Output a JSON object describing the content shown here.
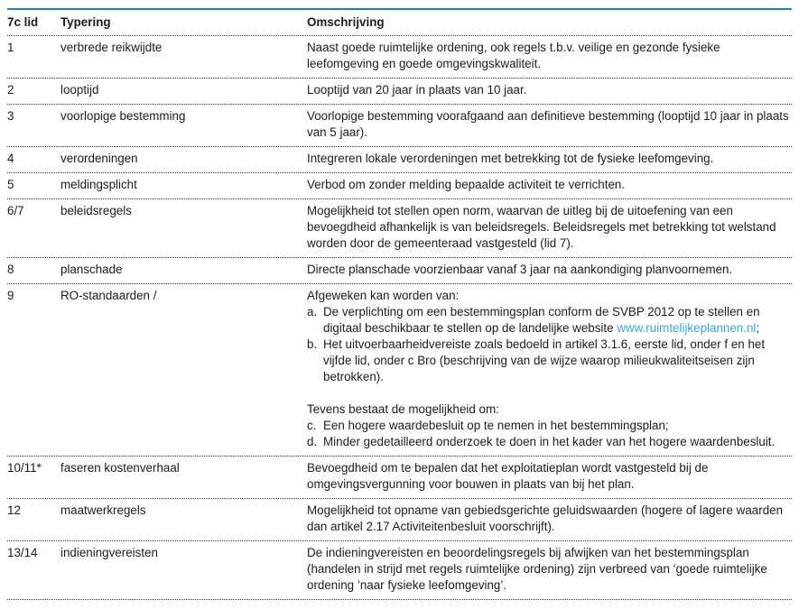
{
  "table": {
    "accent_color": "#1b80c4",
    "link_color": "#3aa7dc",
    "text_color": "#1c1c1c",
    "headers": [
      "7c lid",
      "Typering",
      "Omschrijving"
    ],
    "rows": [
      {
        "lid": "1",
        "typering": "verbrede reikwijdte",
        "omschrijving": "Naast goede ruimtelijke ordening, ook regels t.b.v. veilige en gezonde fysieke leefomgeving en goede omgevingskwaliteit."
      },
      {
        "lid": "2",
        "typering": "looptijd",
        "omschrijving": "Looptijd van 20 jaar in plaats van 10 jaar."
      },
      {
        "lid": "3",
        "typering": "voorlopige bestemming",
        "omschrijving": "Voorlopige bestemming voorafgaand aan definitieve bestemming (looptijd 10 jaar in plaats van 5 jaar)."
      },
      {
        "lid": "4",
        "typering": "verordeningen",
        "omschrijving": "Integreren lokale verordeningen met betrekking tot de fysieke leefomgeving."
      },
      {
        "lid": "5",
        "typering": "meldingsplicht",
        "omschrijving": "Verbod om zonder melding bepaalde activiteit te verrichten."
      },
      {
        "lid": "6/7",
        "typering": "beleidsregels",
        "omschrijving": "Mogelijkheid tot stellen open norm, waarvan de uitleg bij de uitoefening van een bevoegdheid afhankelijk is van beleidsregels. Beleidsregels met betrekking tot welstand worden door de gemeenteraad vastgesteld (lid 7)."
      },
      {
        "lid": "8",
        "typering": "planschade",
        "omschrijving": "Directe planschade voorzienbaar vanaf 3 jaar na aankondiging planvoornemen."
      },
      {
        "lid": "9",
        "typering": "RO-standaarden /",
        "omschrijving": [
          {
            "type": "line",
            "text": "Afgeweken kan worden van:"
          },
          {
            "type": "item",
            "marker": "a.",
            "parts": [
              {
                "text": "De verplichting om een bestemmingsplan conform de SVBP 2012 op te stellen en digitaal beschikbaar te stellen op de landelijke website "
              },
              {
                "link": "www.ruimtelijkeplannen.nl"
              },
              {
                "text": ";"
              }
            ]
          },
          {
            "type": "item",
            "marker": "b.",
            "parts": [
              {
                "text": "Het uitvoerbaarheidvereiste zoals bedoeld in artikel 3.1.6, eerste lid, onder f en het vijfde lid, onder c Bro (beschrijving van de wijze waarop milieukwaliteitseisen zijn betrokken)."
              }
            ]
          },
          {
            "type": "spacer"
          },
          {
            "type": "line",
            "text": "Tevens bestaat de mogelijkheid om:"
          },
          {
            "type": "item",
            "marker": "c.",
            "parts": [
              {
                "text": "Een hogere waardebesluit op te nemen in het bestemmingsplan;"
              }
            ]
          },
          {
            "type": "item",
            "marker": "d.",
            "parts": [
              {
                "text": "Minder gedetailleerd onderzoek te doen in het kader van het hogere waardenbesluit."
              }
            ]
          }
        ]
      },
      {
        "lid": "10/11*",
        "typering": "faseren kostenverhaal",
        "omschrijving": "Bevoegdheid om te bepalen dat het exploitatieplan wordt vastgesteld bij de omgevingsvergunning voor bouwen in plaats van bij het plan."
      },
      {
        "lid": "12",
        "typering": "maatwerkregels",
        "omschrijving": "Mogelijkheid tot opname van gebiedsgerichte geluidswaarden (hogere of lagere waarden dan artikel 2.17 Activiteitenbesluit voorschrijft)."
      },
      {
        "lid": "13/14",
        "typering": "indieningvereisten",
        "omschrijving": "De indieningvereisten en beoordelingsregels bij afwijken van het bestemmingsplan (handelen in strijd met regels ruimtelijke ordening) zijn verbreed van ‘goede ruimtelijke ordening ’naar fysieke leefomgeving’."
      }
    ]
  }
}
